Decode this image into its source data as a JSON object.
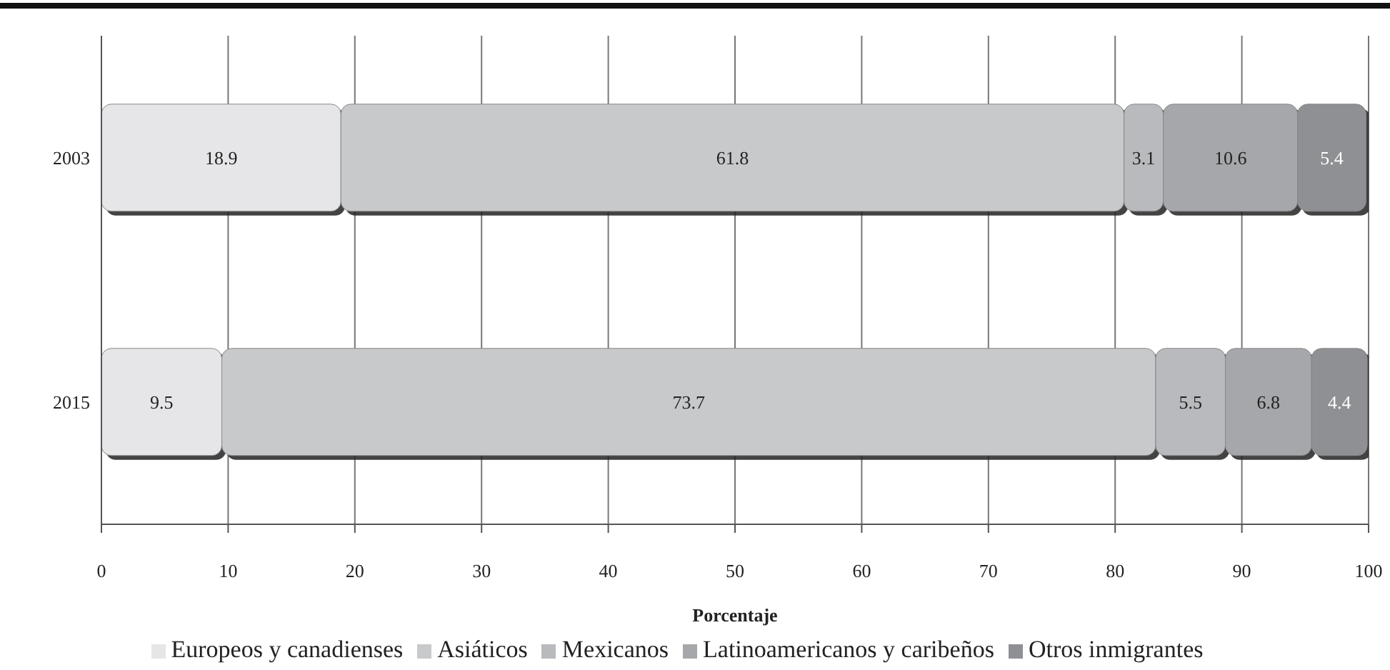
{
  "chart_data": {
    "type": "bar",
    "orientation": "horizontal",
    "stacked": true,
    "xlabel": "Porcentaje",
    "categories": [
      "2003",
      "2015"
    ],
    "series": [
      {
        "name": "Europeos y canadienses",
        "color": "#e6e6e8",
        "values": [
          18.9,
          9.5
        ]
      },
      {
        "name": "Asiáticos",
        "color": "#c8c9cb",
        "values": [
          61.8,
          73.7
        ]
      },
      {
        "name": "Mexicanos",
        "color": "#b9babe",
        "values": [
          3.1,
          5.5
        ]
      },
      {
        "name": "Latinoamericanos y caribeños",
        "color": "#a6a7aa",
        "values": [
          10.6,
          6.8
        ]
      },
      {
        "name": "Otros inmigrantes",
        "color": "#8f9093",
        "values": [
          5.4,
          4.4
        ]
      }
    ],
    "xlim": [
      0,
      100
    ],
    "xticks": [
      0,
      10,
      20,
      30,
      40,
      50,
      60,
      70,
      80,
      90,
      100
    ],
    "grid": "x",
    "legend": "bottom",
    "data_labels": true
  }
}
